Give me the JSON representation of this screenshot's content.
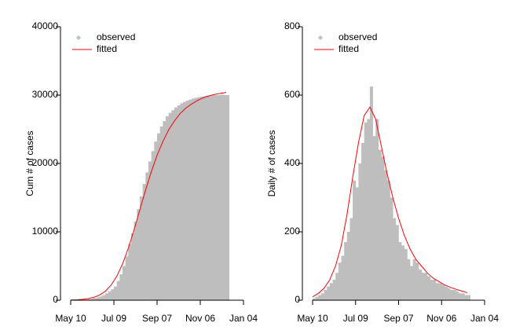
{
  "chart_data": [
    {
      "type": "combo",
      "ylabel": "Cum # of cases",
      "legend": "top-left",
      "xlim": [
        0,
        240
      ],
      "ylim": [
        0,
        40000
      ],
      "xticks": [
        {
          "value": 0,
          "label": "May 10"
        },
        {
          "value": 60,
          "label": "Jul 09"
        },
        {
          "value": 120,
          "label": "Sep 07"
        },
        {
          "value": 180,
          "label": "Nov 06"
        },
        {
          "value": 240,
          "label": "Jan 04"
        }
      ],
      "yticks": [
        0,
        10000,
        20000,
        30000,
        40000
      ],
      "series": [
        {
          "name": "observed",
          "mark": "bar",
          "color": "#bebebe",
          "x": [
            0,
            4,
            8,
            12,
            16,
            20,
            24,
            28,
            32,
            36,
            40,
            44,
            48,
            52,
            56,
            60,
            64,
            68,
            72,
            76,
            80,
            84,
            88,
            92,
            96,
            100,
            104,
            108,
            112,
            116,
            120,
            124,
            128,
            132,
            136,
            140,
            144,
            148,
            152,
            156,
            160,
            164,
            168,
            172,
            176,
            180,
            184,
            188,
            192,
            196,
            200,
            204,
            208,
            212,
            216
          ],
          "values": [
            0,
            0,
            20,
            40,
            60,
            100,
            150,
            200,
            300,
            400,
            550,
            750,
            1000,
            1300,
            1600,
            2000,
            2800,
            3800,
            5000,
            6400,
            8200,
            9800,
            11500,
            13300,
            15200,
            17000,
            18700,
            20300,
            21800,
            23200,
            24400,
            25400,
            26200,
            26900,
            27400,
            27800,
            28200,
            28500,
            28800,
            29000,
            29200,
            29350,
            29500,
            29600,
            29700,
            29780,
            29840,
            29890,
            29930,
            29960,
            29980,
            29990,
            30000,
            30000,
            30000
          ]
        },
        {
          "name": "fitted",
          "mark": "line",
          "color": "#ff0000",
          "x": [
            0,
            8,
            16,
            24,
            32,
            40,
            48,
            56,
            64,
            72,
            80,
            88,
            96,
            104,
            112,
            120,
            128,
            136,
            144,
            152,
            160,
            168,
            176,
            184,
            192,
            200,
            208,
            216
          ],
          "values": [
            30,
            60,
            120,
            230,
            420,
            750,
            1300,
            2200,
            3500,
            5300,
            7600,
            10300,
            13200,
            16100,
            18800,
            21200,
            23200,
            24900,
            26200,
            27300,
            28100,
            28700,
            29200,
            29600,
            29900,
            30100,
            30250,
            30400
          ]
        }
      ]
    },
    {
      "type": "combo",
      "ylabel": "Daily # of cases",
      "legend": "top-left",
      "xlim": [
        0,
        240
      ],
      "ylim": [
        0,
        800
      ],
      "xticks": [
        {
          "value": 0,
          "label": "May 10"
        },
        {
          "value": 60,
          "label": "Jul 09"
        },
        {
          "value": 120,
          "label": "Sep 07"
        },
        {
          "value": 180,
          "label": "Nov 06"
        },
        {
          "value": 240,
          "label": "Jan 04"
        }
      ],
      "yticks": [
        0,
        200,
        400,
        600,
        800
      ],
      "series": [
        {
          "name": "observed",
          "mark": "bar",
          "color": "#bebebe",
          "x": [
            0,
            4,
            8,
            12,
            16,
            20,
            24,
            28,
            32,
            36,
            40,
            44,
            48,
            52,
            56,
            60,
            64,
            68,
            72,
            76,
            80,
            84,
            88,
            92,
            96,
            100,
            104,
            108,
            112,
            116,
            120,
            124,
            128,
            132,
            136,
            140,
            144,
            148,
            152,
            156,
            160,
            164,
            168,
            172,
            176,
            180,
            184,
            188,
            192,
            196,
            200,
            204,
            208,
            212,
            216
          ],
          "values": [
            5,
            10,
            15,
            20,
            30,
            40,
            50,
            60,
            80,
            110,
            130,
            170,
            200,
            240,
            350,
            330,
            400,
            460,
            520,
            530,
            625,
            480,
            530,
            440,
            420,
            380,
            350,
            300,
            240,
            220,
            170,
            160,
            150,
            120,
            100,
            120,
            110,
            90,
            80,
            80,
            70,
            60,
            60,
            50,
            50,
            45,
            40,
            35,
            30,
            30,
            25,
            20,
            20,
            15,
            15
          ]
        },
        {
          "name": "fitted",
          "mark": "line",
          "color": "#ff0000",
          "x": [
            0,
            8,
            16,
            24,
            32,
            40,
            48,
            56,
            64,
            72,
            80,
            88,
            96,
            104,
            112,
            120,
            128,
            136,
            144,
            152,
            160,
            168,
            176,
            184,
            192,
            200,
            208,
            216
          ],
          "values": [
            10,
            20,
            35,
            60,
            100,
            160,
            250,
            360,
            460,
            540,
            565,
            530,
            450,
            370,
            300,
            240,
            190,
            150,
            120,
            100,
            80,
            65,
            55,
            45,
            38,
            32,
            27,
            22
          ]
        }
      ]
    }
  ]
}
